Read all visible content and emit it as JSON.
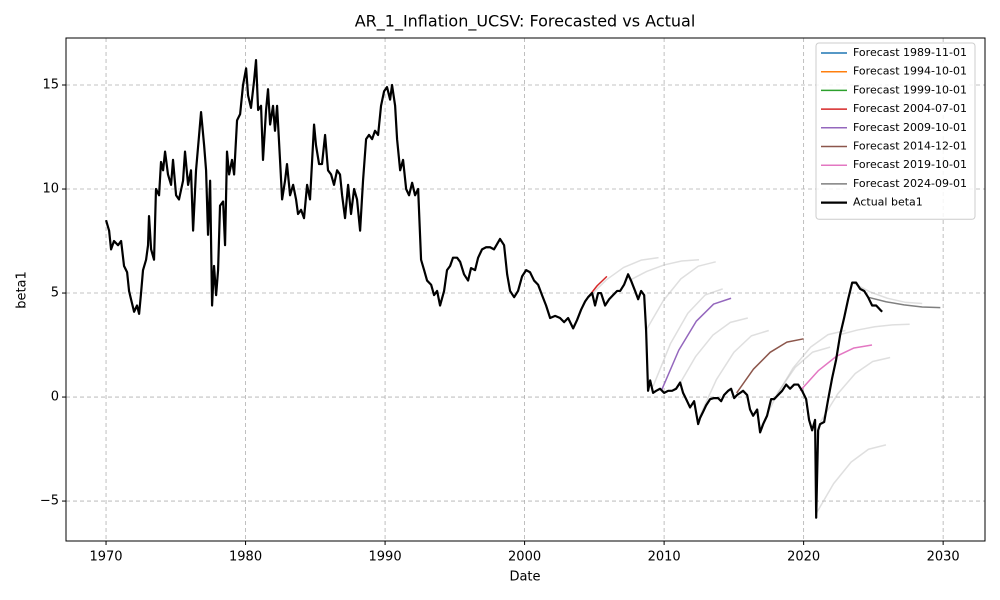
{
  "chart_data": {
    "type": "line",
    "title": "AR_1_Inflation_UCSV: Forecasted vs Actual",
    "x_label": "Date",
    "y_label": "beta1",
    "xlim": [
      1967.13,
      2033.0
    ],
    "ylim": [
      -6.92,
      17.26
    ],
    "xticks": [
      1970,
      1980,
      1990,
      2000,
      2010,
      2020,
      2030
    ],
    "yticks": [
      {
        "value": -5,
        "label": "−5"
      },
      0,
      5,
      10,
      15
    ],
    "grid": true,
    "legend_position": "upper-right",
    "background_color": "#b8b8b8",
    "background_forecasts": [
      {
        "x": [
          2004.6,
          2005.85,
          2007.1,
          2008.35,
          2009.6
        ],
        "values": [
          4.8,
          5.63,
          6.23,
          6.58,
          6.7
        ]
      },
      {
        "x": [
          2007.5,
          2008.75,
          2010,
          2011.25,
          2012.5
        ],
        "values": [
          5.6,
          6.04,
          6.35,
          6.54,
          6.6
        ]
      },
      {
        "x": [
          2008.7,
          2009.95,
          2011.2,
          2012.45,
          2013.7
        ],
        "values": [
          3.2,
          4.64,
          5.68,
          6.29,
          6.5
        ]
      },
      {
        "x": [
          2009.2,
          2010.45,
          2011.7,
          2012.95,
          2014.2
        ],
        "values": [
          0.5,
          2.56,
          4.03,
          4.91,
          5.2
        ]
      },
      {
        "x": [
          2011,
          2012.25,
          2013.5,
          2014.75,
          2016
        ],
        "values": [
          0.5,
          1.94,
          2.98,
          3.59,
          3.8
        ]
      },
      {
        "x": [
          2012.5,
          2013.75,
          2015,
          2016.25,
          2017.5
        ],
        "values": [
          -1.0,
          0.84,
          2.15,
          2.94,
          3.2
        ]
      },
      {
        "x": [
          2016.9,
          2018.15,
          2019.4,
          2020.65,
          2021.9
        ],
        "values": [
          -1.5,
          0.21,
          1.43,
          2.16,
          2.4
        ]
      },
      {
        "x": [
          2018,
          2019.25,
          2020.5,
          2021.75,
          2023
        ],
        "values": [
          0,
          1.4,
          2.4,
          3.0,
          3.2
        ]
      },
      {
        "x": [
          2020.9,
          2022.15,
          2023.4,
          2024.65,
          2025.9
        ],
        "values": [
          -5.6,
          -4.16,
          -3.13,
          -2.51,
          -2.3
        ]
      },
      {
        "x": [
          2021.2,
          2022.45,
          2023.7,
          2024.95,
          2026.2
        ],
        "values": [
          -1.2,
          0.16,
          1.13,
          1.71,
          1.9
        ]
      },
      {
        "x": [
          2022.6,
          2023.85,
          2025.1,
          2026.35,
          2027.6
        ],
        "values": [
          3.0,
          3.22,
          3.38,
          3.47,
          3.5
        ]
      },
      {
        "x": [
          2023.5,
          2024.75,
          2026,
          2027.25,
          2028.5
        ],
        "values": [
          5.5,
          5.06,
          4.75,
          4.56,
          4.5
        ]
      }
    ],
    "series": [
      {
        "name": "Forecast 1989-11-01",
        "color": "#1f77b4",
        "width": 1.5,
        "x": [],
        "values": []
      },
      {
        "name": "Forecast 1994-10-01",
        "color": "#ff7f0e",
        "width": 1.5,
        "x": [],
        "values": []
      },
      {
        "name": "Forecast 1999-10-01",
        "color": "#2ca02c",
        "width": 1.5,
        "x": [],
        "values": []
      },
      {
        "name": "Forecast 2004-07-01",
        "color": "#d62728",
        "width": 1.5,
        "x": [
          2004.55,
          2005.2,
          2005.9
        ],
        "values": [
          4.8,
          5.35,
          5.8
        ]
      },
      {
        "name": "Forecast 2009-10-01",
        "color": "#9467bd",
        "width": 1.5,
        "x": [
          2009.8,
          2011.05,
          2012.3,
          2013.55,
          2014.8
        ],
        "values": [
          0.3,
          2.25,
          3.64,
          4.47,
          4.75
        ]
      },
      {
        "name": "Forecast 2014-12-01",
        "color": "#8c564b",
        "width": 1.5,
        "x": [
          2015.2,
          2016.4,
          2017.6,
          2018.8,
          2020.0
        ],
        "values": [
          0.2,
          1.34,
          2.15,
          2.64,
          2.8
        ]
      },
      {
        "name": "Forecast 2019-10-01",
        "color": "#e377c2",
        "width": 1.5,
        "x": [
          2019.75,
          2021.04,
          2022.33,
          2023.61,
          2024.9
        ],
        "values": [
          0.3,
          1.26,
          1.95,
          2.36,
          2.5
        ]
      },
      {
        "name": "Forecast 2024-09-01",
        "color": "#7f7f7f",
        "width": 1.5,
        "x": [
          2024.6,
          2025.9,
          2027.2,
          2028.5,
          2029.8
        ],
        "values": [
          4.8,
          4.58,
          4.43,
          4.33,
          4.3
        ]
      },
      {
        "name": "Actual beta1",
        "color": "#000000",
        "width": 2.2,
        "x": [
          1970.0,
          1970.22,
          1970.36,
          1970.57,
          1970.86,
          1971.08,
          1971.29,
          1971.51,
          1971.65,
          1971.79,
          1972.01,
          1972.22,
          1972.37,
          1972.51,
          1972.65,
          1972.87,
          1973.01,
          1973.08,
          1973.23,
          1973.44,
          1973.58,
          1973.8,
          1973.94,
          1974.09,
          1974.23,
          1974.44,
          1974.66,
          1974.8,
          1975.02,
          1975.23,
          1975.52,
          1975.66,
          1975.88,
          1976.09,
          1976.24,
          1976.45,
          1976.67,
          1976.81,
          1977.03,
          1977.17,
          1977.31,
          1977.46,
          1977.6,
          1977.74,
          1977.89,
          1978.03,
          1978.17,
          1978.39,
          1978.53,
          1978.67,
          1978.82,
          1979.03,
          1979.18,
          1979.39,
          1979.61,
          1979.82,
          1980.04,
          1980.18,
          1980.39,
          1980.61,
          1980.75,
          1980.9,
          1981.11,
          1981.25,
          1981.47,
          1981.61,
          1981.76,
          1981.97,
          1982.11,
          1982.26,
          1982.47,
          1982.62,
          1982.83,
          1982.97,
          1983.19,
          1983.41,
          1983.62,
          1983.76,
          1983.98,
          1984.19,
          1984.41,
          1984.62,
          1984.91,
          1985.05,
          1985.27,
          1985.48,
          1985.7,
          1985.91,
          1986.13,
          1986.34,
          1986.56,
          1986.77,
          1986.92,
          1987.13,
          1987.35,
          1987.56,
          1987.78,
          1987.99,
          1988.21,
          1988.42,
          1988.64,
          1988.85,
          1989.07,
          1989.28,
          1989.5,
          1989.71,
          1989.93,
          1990.14,
          1990.36,
          1990.5,
          1990.72,
          1990.86,
          1991.08,
          1991.29,
          1991.51,
          1991.72,
          1991.94,
          1992.15,
          1992.37,
          1992.58,
          1992.8,
          1993.01,
          1993.3,
          1993.51,
          1993.73,
          1993.94,
          1994.23,
          1994.44,
          1994.66,
          1994.87,
          1995.16,
          1995.38,
          1995.66,
          1995.95,
          1996.16,
          1996.45,
          1996.67,
          1996.95,
          1997.24,
          1997.53,
          1997.81,
          1998.24,
          1998.53,
          1998.75,
          1998.96,
          1999.25,
          1999.53,
          1999.82,
          2000.11,
          2000.39,
          2000.68,
          2000.97,
          2001.25,
          2001.54,
          2001.83,
          2002.19,
          2002.54,
          2002.83,
          2003.12,
          2003.48,
          2003.76,
          2004.05,
          2004.34,
          2004.55,
          2004.84,
          2005.05,
          2005.27,
          2005.48,
          2005.77,
          2006.06,
          2006.34,
          2006.63,
          2006.85,
          2007.13,
          2007.42,
          2007.63,
          2007.92,
          2008.14,
          2008.35,
          2008.57,
          2008.71,
          2008.85,
          2009.0,
          2009.21,
          2009.43,
          2009.71,
          2010.0,
          2010.29,
          2010.57,
          2010.86,
          2011.15,
          2011.36,
          2011.58,
          2011.86,
          2012.15,
          2012.44,
          2012.58,
          2012.8,
          2013.01,
          2013.3,
          2013.58,
          2013.87,
          2014.09,
          2014.3,
          2014.59,
          2014.8,
          2015.02,
          2015.23,
          2015.45,
          2015.66,
          2015.95,
          2016.16,
          2016.38,
          2016.67,
          2016.88,
          2017.1,
          2017.38,
          2017.67,
          2017.89,
          2018.17,
          2018.46,
          2018.75,
          2019.03,
          2019.32,
          2019.61,
          2019.89,
          2020.18,
          2020.39,
          2020.61,
          2020.82,
          2020.9,
          2021.04,
          2021.18,
          2021.47,
          2021.76,
          2022.04,
          2022.33,
          2022.62,
          2022.9,
          2023.19,
          2023.48,
          2023.76,
          2024.05,
          2024.34,
          2024.62,
          2024.91,
          2025.2,
          2025.48,
          2025.63
        ],
        "values": [
          8.5,
          8.0,
          7.1,
          7.5,
          7.3,
          7.5,
          6.3,
          6.0,
          5.1,
          4.7,
          4.1,
          4.4,
          4.0,
          5.0,
          6.1,
          6.6,
          7.3,
          8.7,
          7.1,
          6.6,
          10.0,
          9.7,
          11.3,
          10.9,
          11.8,
          10.7,
          10.2,
          11.4,
          9.7,
          9.5,
          10.4,
          11.8,
          10.2,
          10.9,
          8.0,
          10.9,
          12.6,
          13.7,
          12.1,
          10.9,
          7.8,
          10.4,
          4.4,
          6.3,
          4.9,
          6.1,
          9.2,
          9.4,
          7.3,
          11.8,
          10.7,
          11.4,
          10.7,
          13.3,
          13.6,
          15.0,
          15.8,
          14.5,
          13.9,
          15.2,
          16.2,
          13.8,
          14.0,
          11.4,
          13.8,
          14.8,
          13.1,
          14.0,
          12.8,
          14.0,
          11.4,
          9.5,
          10.4,
          11.2,
          9.7,
          10.2,
          9.5,
          8.8,
          9.0,
          8.6,
          10.2,
          9.5,
          13.1,
          12.1,
          11.2,
          11.2,
          12.6,
          10.9,
          10.7,
          10.2,
          10.9,
          10.7,
          9.7,
          8.6,
          10.2,
          8.8,
          10.0,
          9.5,
          8.0,
          10.4,
          12.4,
          12.6,
          12.4,
          12.8,
          12.6,
          14.0,
          14.7,
          14.9,
          14.3,
          15.0,
          14.0,
          12.4,
          10.9,
          11.4,
          10.0,
          9.7,
          10.3,
          9.7,
          10.0,
          6.6,
          6.1,
          5.6,
          5.4,
          4.9,
          5.1,
          4.4,
          5.1,
          6.1,
          6.3,
          6.7,
          6.7,
          6.5,
          5.9,
          5.6,
          6.2,
          6.1,
          6.7,
          7.1,
          7.2,
          7.2,
          7.1,
          7.6,
          7.3,
          5.9,
          5.1,
          4.8,
          5.1,
          5.8,
          6.1,
          6.0,
          5.6,
          5.4,
          4.9,
          4.4,
          3.8,
          3.9,
          3.8,
          3.6,
          3.8,
          3.3,
          3.7,
          4.2,
          4.6,
          4.8,
          5.0,
          4.4,
          5.0,
          5.0,
          4.4,
          4.7,
          4.9,
          5.1,
          5.1,
          5.4,
          5.9,
          5.6,
          5.1,
          4.7,
          5.1,
          4.9,
          3.2,
          0.3,
          0.8,
          0.2,
          0.3,
          0.4,
          0.2,
          0.3,
          0.3,
          0.4,
          0.7,
          0.2,
          -0.1,
          -0.5,
          -0.2,
          -1.3,
          -1.0,
          -0.7,
          -0.4,
          -0.1,
          -0.05,
          -0.05,
          -0.2,
          0.1,
          0.3,
          0.4,
          -0.05,
          0.1,
          0.2,
          0.3,
          0.1,
          -0.6,
          -0.9,
          -0.6,
          -1.7,
          -1.3,
          -0.9,
          -0.1,
          -0.1,
          0.1,
          0.3,
          0.6,
          0.4,
          0.6,
          0.6,
          0.3,
          -0.1,
          -1.1,
          -1.6,
          -1.1,
          -5.8,
          -1.6,
          -1.3,
          -1.2,
          -0.1,
          0.9,
          1.8,
          3.0,
          3.8,
          4.7,
          5.5,
          5.5,
          5.2,
          5.1,
          4.8,
          4.4,
          4.4,
          4.2,
          4.1
        ]
      }
    ]
  }
}
